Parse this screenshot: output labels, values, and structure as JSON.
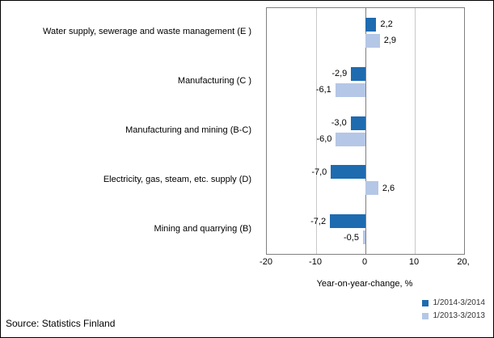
{
  "source": "Source: Statistics Finland",
  "chart_data": {
    "type": "bar",
    "orientation": "horizontal",
    "title": "",
    "xlabel": "Year-on-year-change, %",
    "ylabel": "",
    "xlim": [
      -20,
      20
    ],
    "xticks": [
      -20,
      -10,
      0,
      10,
      20
    ],
    "xtick_labels": [
      "-20",
      "-10",
      "0",
      "10",
      "20,"
    ],
    "grid": true,
    "legend_position": "bottom-right",
    "categories": [
      "Water supply, sewerage and waste management (E )",
      "Manufacturing (C )",
      "Manufacturing and mining (B-C)",
      "Electricity, gas, steam, etc. supply  (D)",
      "Mining and quarrying (B)"
    ],
    "series": [
      {
        "name": "1/2014-3/2014",
        "color": "#1E6BB0",
        "values": [
          2.2,
          -2.9,
          -3.0,
          -7.0,
          -7.2
        ],
        "labels": [
          "2,2",
          "-2,9",
          "-3,0",
          "-7,0",
          "-7,2"
        ]
      },
      {
        "name": "1/2013-3/2013",
        "color": "#B5C7E6",
        "values": [
          2.9,
          -6.1,
          -6.0,
          2.6,
          -0.5
        ],
        "labels": [
          "2,9",
          "-6,1",
          "-6,0",
          "2,6",
          "-0,5"
        ]
      }
    ]
  }
}
